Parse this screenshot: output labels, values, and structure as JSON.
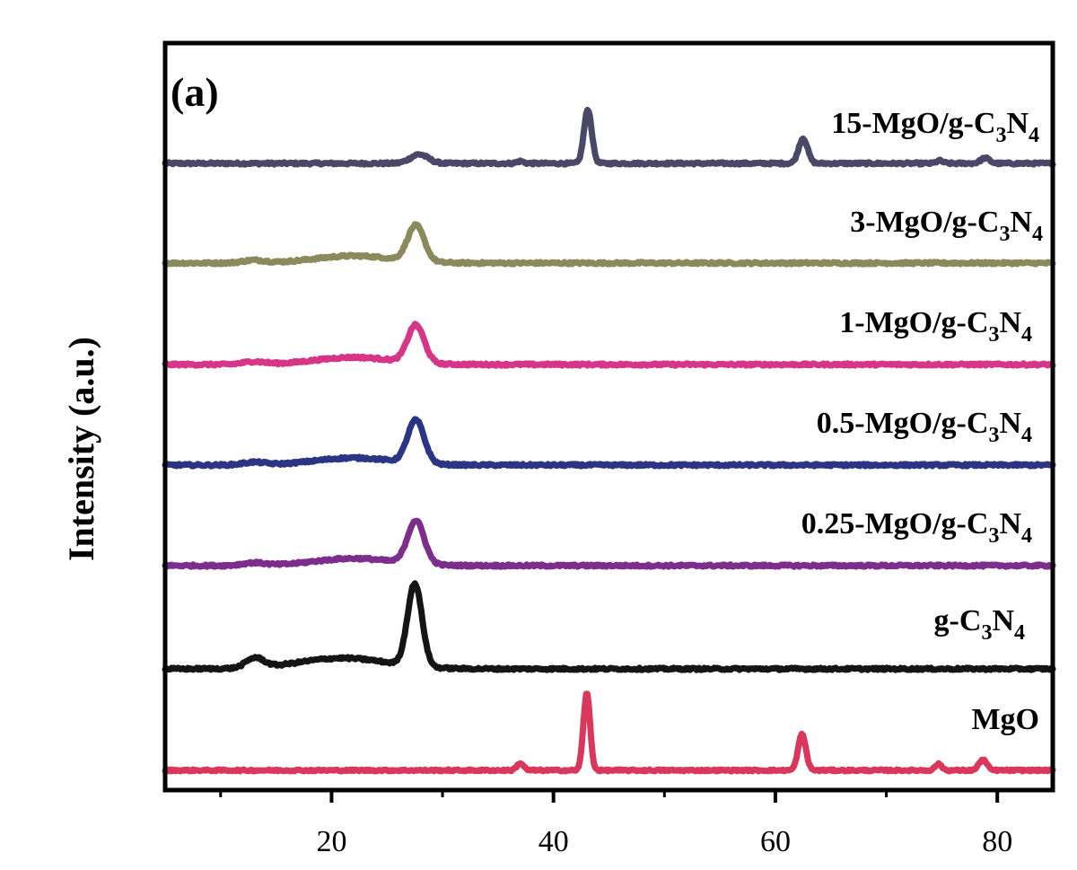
{
  "chart_data": {
    "type": "line",
    "panel_label": "(a)",
    "ylabel": "Intensity (a.u.)",
    "xlim": [
      5,
      85
    ],
    "x_ticks": [
      20,
      40,
      60,
      80
    ],
    "x_minor_ticks": [
      10,
      30,
      50,
      70
    ],
    "series": [
      {
        "name": "15-MgO/g-C3N4",
        "label_parts": [
          "15-MgO/g-C",
          "3",
          "N",
          "4"
        ],
        "color": "#4a4767",
        "baseline": 0.0,
        "noise": 0.06,
        "peaks": [
          {
            "x": 27.9,
            "height": 0.5,
            "width": 0.8
          },
          {
            "x": 43.1,
            "height": 3.0,
            "width": 0.35
          },
          {
            "x": 62.5,
            "height": 1.4,
            "width": 0.4
          },
          {
            "x": 78.9,
            "height": 0.3,
            "width": 0.4
          },
          {
            "x": 74.8,
            "height": 0.15,
            "width": 0.3
          },
          {
            "x": 37.0,
            "height": 0.12,
            "width": 0.3
          }
        ]
      },
      {
        "name": "3-MgO/g-C3N4",
        "label_parts": [
          "3-MgO/g-C",
          "3",
          "N",
          "4"
        ],
        "color": "#8a8a5c",
        "baseline": 0.0,
        "noise": 0.06,
        "peaks": [
          {
            "x": 27.6,
            "height": 2.0,
            "width": 0.75
          },
          {
            "x": 22.0,
            "height": 0.4,
            "width": 3.5
          },
          {
            "x": 13.0,
            "height": 0.15,
            "width": 1.0
          }
        ]
      },
      {
        "name": "1-MgO/g-C3N4",
        "label_parts": [
          "1-MgO/g-C",
          "3",
          "N",
          "4"
        ],
        "color": "#d63588",
        "baseline": 0.0,
        "noise": 0.06,
        "peaks": [
          {
            "x": 27.6,
            "height": 2.1,
            "width": 0.75
          },
          {
            "x": 22.0,
            "height": 0.4,
            "width": 3.5
          },
          {
            "x": 13.0,
            "height": 0.15,
            "width": 1.0
          }
        ]
      },
      {
        "name": "0.5-MgO/g-C3N4",
        "label_parts": [
          "0.5-MgO/g-C",
          "3",
          "N",
          "4"
        ],
        "color": "#2c3583",
        "baseline": 0.0,
        "noise": 0.06,
        "peaks": [
          {
            "x": 27.6,
            "height": 2.4,
            "width": 0.75
          },
          {
            "x": 22.0,
            "height": 0.4,
            "width": 3.5
          },
          {
            "x": 13.0,
            "height": 0.15,
            "width": 1.0
          }
        ]
      },
      {
        "name": "0.25-MgO/g-C3N4",
        "label_parts": [
          "0.25-MgO/g-C",
          "3",
          "N",
          "4"
        ],
        "color": "#7d2e8c",
        "baseline": 0.0,
        "noise": 0.06,
        "peaks": [
          {
            "x": 27.6,
            "height": 2.4,
            "width": 0.75
          },
          {
            "x": 22.0,
            "height": 0.4,
            "width": 3.5
          },
          {
            "x": 13.0,
            "height": 0.15,
            "width": 1.0
          }
        ]
      },
      {
        "name": "g-C3N4",
        "label_parts": [
          "g-C",
          "3",
          "N",
          "4"
        ],
        "color": "#151515",
        "baseline": 0.0,
        "noise": 0.06,
        "peaks": [
          {
            "x": 27.5,
            "height": 4.6,
            "width": 0.65
          },
          {
            "x": 13.1,
            "height": 0.55,
            "width": 0.8
          },
          {
            "x": 21.0,
            "height": 0.6,
            "width": 4.0
          }
        ]
      },
      {
        "name": "MgO",
        "label_parts": [
          "MgO"
        ],
        "color": "#d9375c",
        "baseline": 0.0,
        "noise": 0.05,
        "peaks": [
          {
            "x": 43.0,
            "height": 4.3,
            "width": 0.3
          },
          {
            "x": 62.4,
            "height": 2.0,
            "width": 0.35
          },
          {
            "x": 78.7,
            "height": 0.6,
            "width": 0.35
          },
          {
            "x": 74.7,
            "height": 0.35,
            "width": 0.3
          },
          {
            "x": 37.0,
            "height": 0.4,
            "width": 0.3
          }
        ]
      }
    ],
    "grid": false,
    "legend": "inline-right"
  }
}
